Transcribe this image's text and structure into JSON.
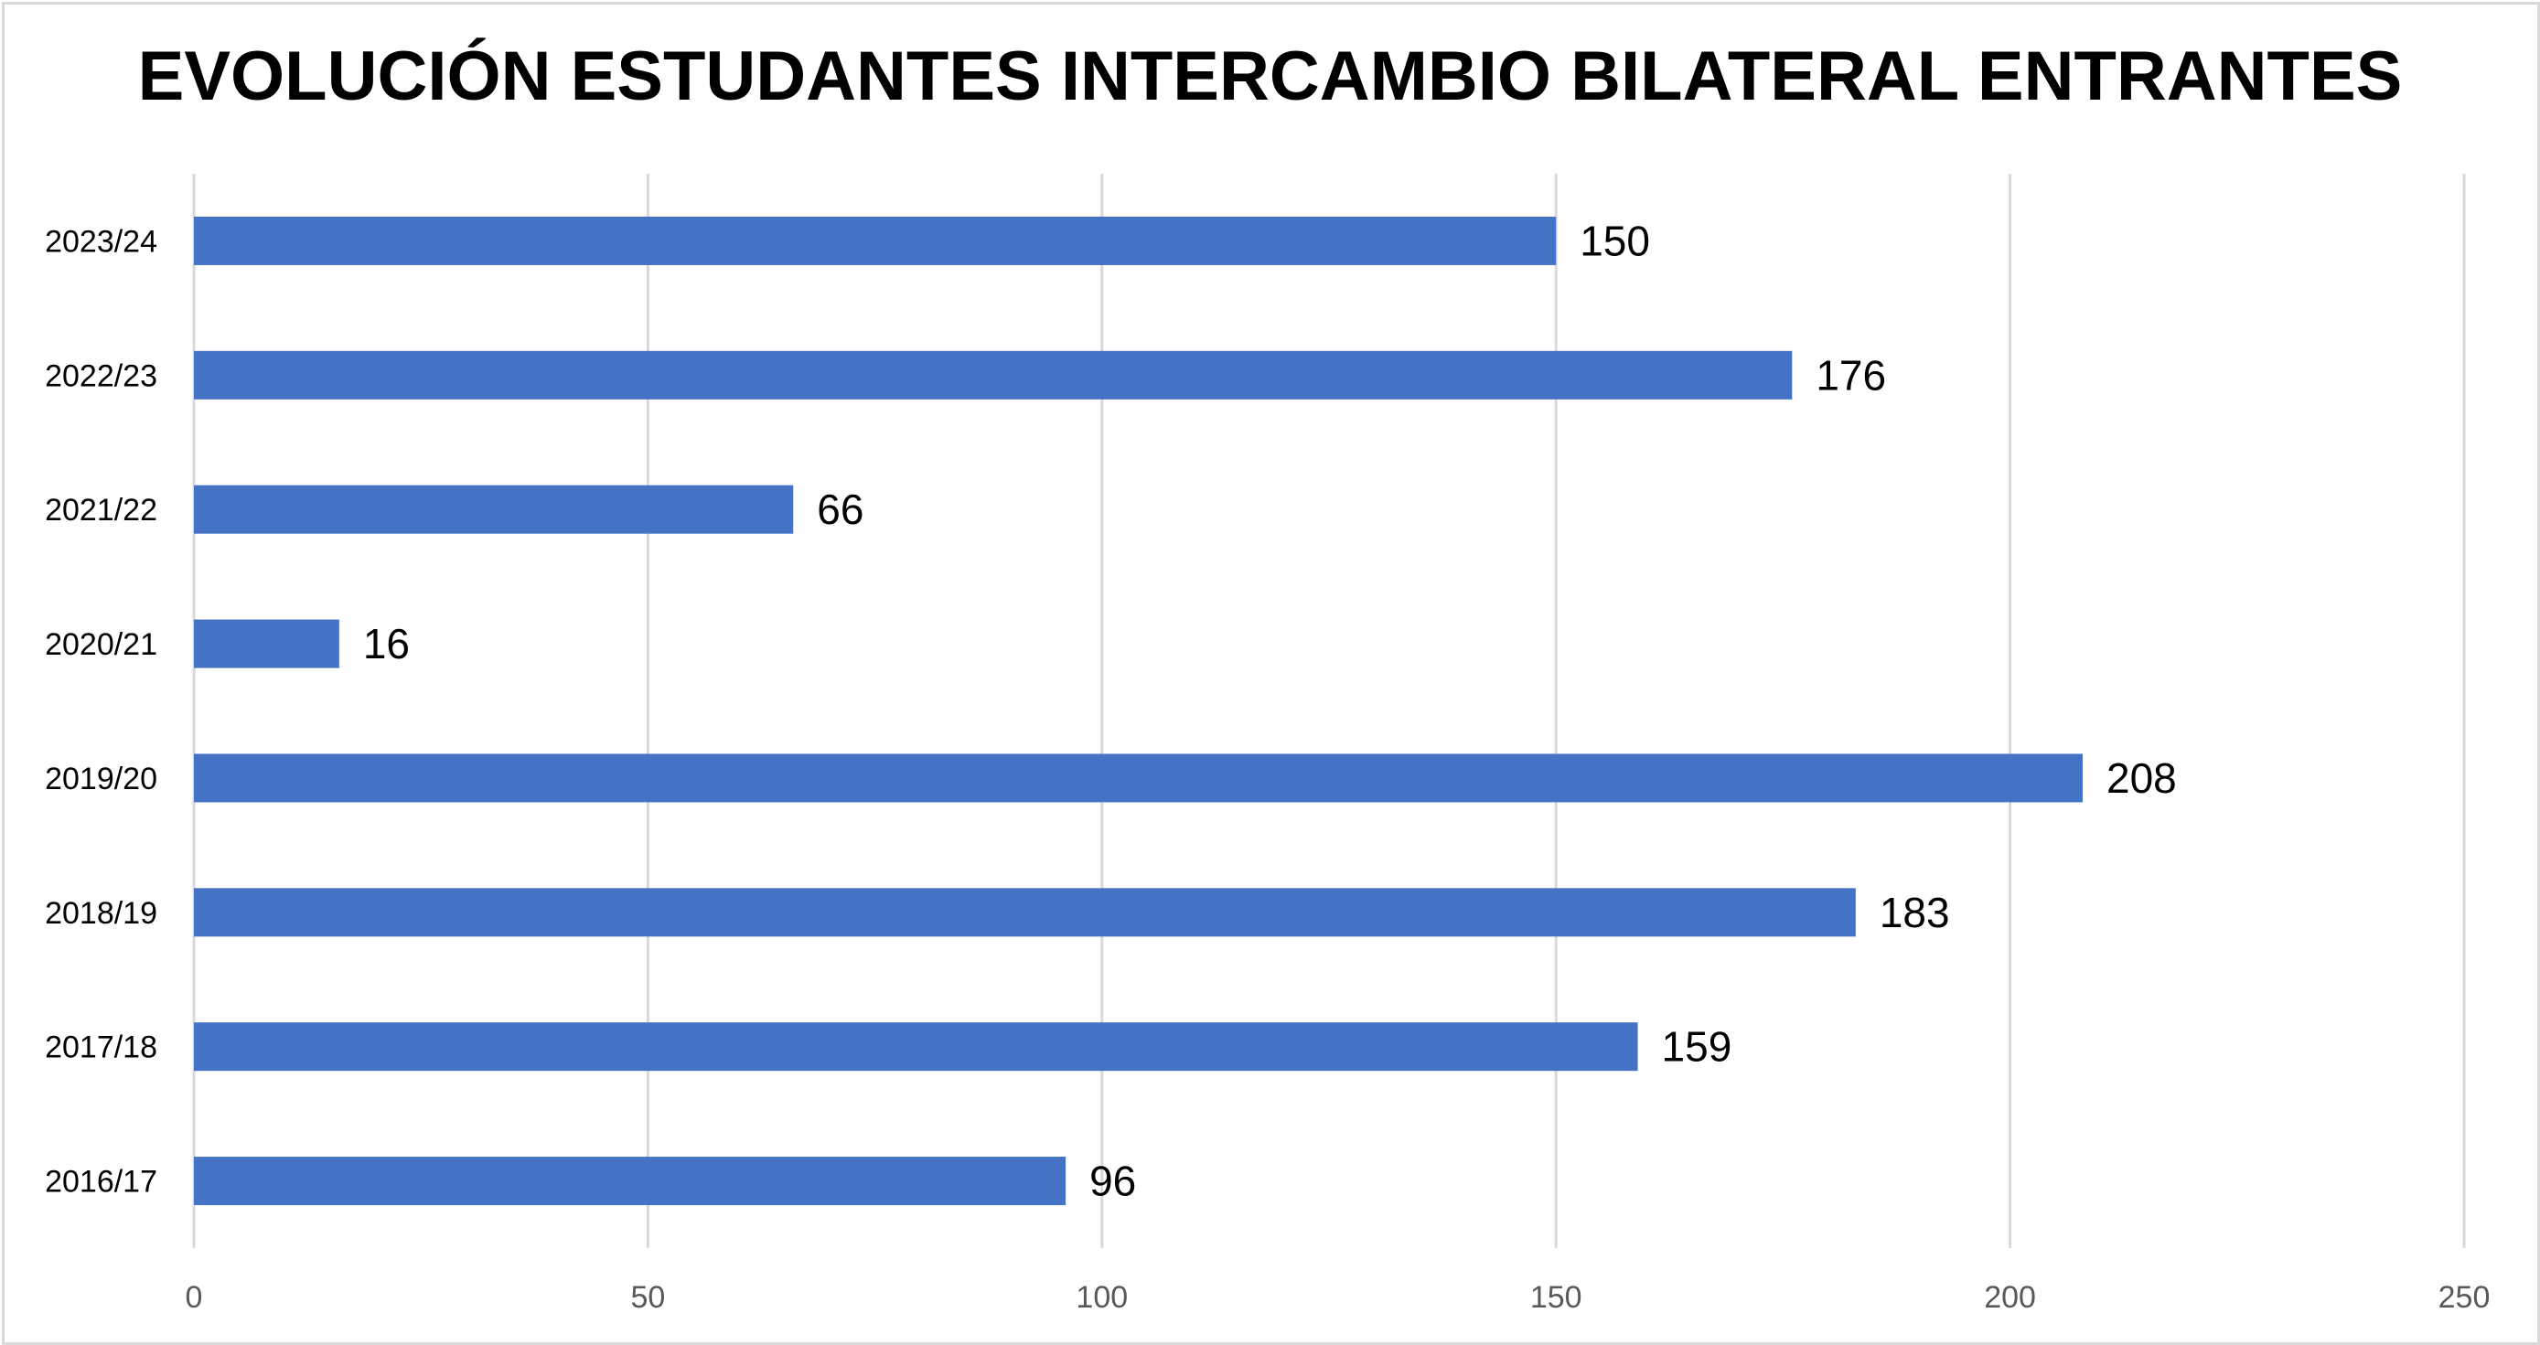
{
  "chart_data": {
    "type": "bar",
    "orientation": "horizontal",
    "title": "EVOLUCIÓN ESTUDANTES INTERCAMBIO BILATERAL ENTRANTES",
    "categories": [
      "2016/17",
      "2017/18",
      "2018/19",
      "2019/20",
      "2020/21",
      "2021/22",
      "2022/23",
      "2023/24"
    ],
    "values": [
      96,
      159,
      183,
      208,
      16,
      66,
      176,
      150
    ],
    "xlabel": "",
    "ylabel": "",
    "xlim": [
      0,
      250
    ],
    "xticks": [
      "0",
      "50",
      "100",
      "150",
      "200",
      "250"
    ],
    "grid": true,
    "legend": "none",
    "bar_color": "#4472c4",
    "grid_color": "#d9d9d9"
  }
}
